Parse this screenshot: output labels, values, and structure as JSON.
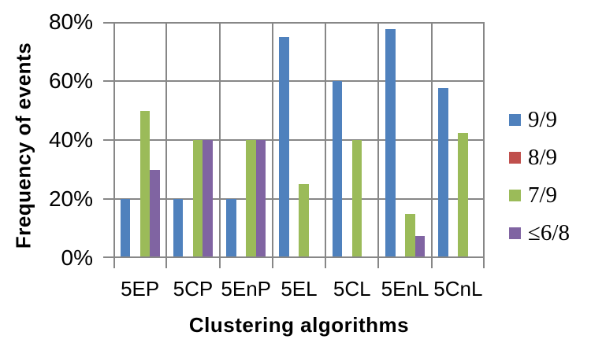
{
  "chart_data": {
    "type": "bar",
    "title": "",
    "xlabel": "Clustering algorithms",
    "ylabel": "Frequency of events",
    "categories": [
      "5EP",
      "5CP",
      "5EnP",
      "5EL",
      "5CL",
      "5EnL",
      "5CnL"
    ],
    "series": [
      {
        "name": "9/9",
        "color": "#4F81BD",
        "values": [
          20,
          20,
          20,
          75,
          60,
          77.5,
          57.5
        ]
      },
      {
        "name": "8/9",
        "color": "#C0504D",
        "values": [
          0,
          0,
          0,
          0,
          0,
          0,
          0
        ]
      },
      {
        "name": "7/9",
        "color": "#9BBB59",
        "values": [
          50,
          40,
          40,
          25,
          40,
          15,
          42.5
        ]
      },
      {
        "name": "≤6/8",
        "color": "#8064A2",
        "values": [
          30,
          40,
          40,
          0,
          0,
          7.5,
          0
        ]
      }
    ],
    "ylim": [
      0,
      80
    ],
    "yticks": [
      0,
      20,
      40,
      60,
      80
    ],
    "ytick_labels": [
      "0%",
      "20%",
      "40%",
      "60%",
      "80%"
    ],
    "grid": true,
    "gridline_color": "#878787",
    "legend_position": "right"
  }
}
